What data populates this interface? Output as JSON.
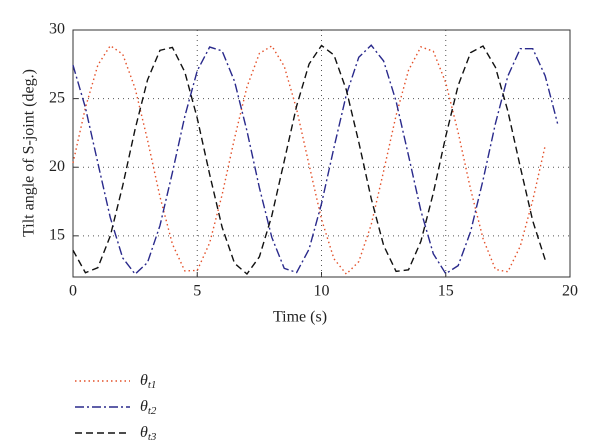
{
  "chart_data": {
    "type": "line",
    "x_label": "Time (s)",
    "y_label": "Tilt angle of S-joint (deg.)",
    "x": [
      0,
      0.5,
      1,
      1.5,
      2,
      2.5,
      3,
      3.5,
      4,
      4.5,
      5,
      5.5,
      6,
      6.5,
      7,
      7.5,
      8,
      8.5,
      9,
      9.5,
      10,
      10.5,
      11,
      11.5,
      12,
      12.5,
      13,
      13.5,
      14,
      14.5,
      15,
      15.5,
      16,
      16.5,
      17,
      17.5,
      18,
      18.5,
      19,
      19.5
    ],
    "series": [
      {
        "name": "θt1",
        "color": "#e4512a",
        "values": [
          20.31,
          24.34,
          27.44,
          28.86,
          28.24,
          25.74,
          21.97,
          17.85,
          14.4,
          12.44,
          12.48,
          14.49,
          17.99,
          22.11,
          25.85,
          28.29,
          28.84,
          27.36,
          24.22,
          20.17,
          16.21,
          13.33,
          12.21,
          13.12,
          15.81,
          19.71,
          23.77,
          27.06,
          28.77,
          28.45,
          26.16,
          22.52,
          18.39,
          14.8,
          12.55,
          12.38,
          14.25,
          17.59,
          21.56,
          null
        ]
      },
      {
        "name": "θt2",
        "color": "#2a2a8c",
        "values": [
          27.44,
          24.34,
          20.31,
          16.33,
          13.39,
          12.21,
          13.06,
          15.75,
          19.61,
          23.71,
          27.03,
          28.76,
          28.48,
          26.26,
          22.65,
          18.51,
          14.89,
          12.63,
          12.33,
          14.03,
          17.34,
          21.42,
          25.29,
          28.01,
          28.89,
          27.74,
          24.82,
          20.86,
          16.82,
          13.69,
          12.24,
          12.83,
          15.31,
          19.06,
          23.19,
          26.65,
          28.64,
          28.64,
          26.66,
          23.18
        ]
      },
      {
        "name": "θt3",
        "color": "#111111",
        "values": [
          13.95,
          12.31,
          12.68,
          14.99,
          18.65,
          22.78,
          26.37,
          28.52,
          28.73,
          26.94,
          23.57,
          19.47,
          15.63,
          13.0,
          12.22,
          13.47,
          16.46,
          20.45,
          24.47,
          27.52,
          28.87,
          28.18,
          25.63,
          21.83,
          17.72,
          14.3,
          12.41,
          12.52,
          14.6,
          18.12,
          22.25,
          25.96,
          28.35,
          28.83,
          27.28,
          24.08,
          20.02,
          16.09,
          13.26,
          null
        ]
      }
    ],
    "xlim": [
      0,
      20
    ],
    "xticks": [
      0,
      5,
      10,
      15,
      20
    ],
    "ylim": [
      12,
      30
    ],
    "yticks": [
      15,
      20,
      25,
      30
    ],
    "grid": true
  }
}
